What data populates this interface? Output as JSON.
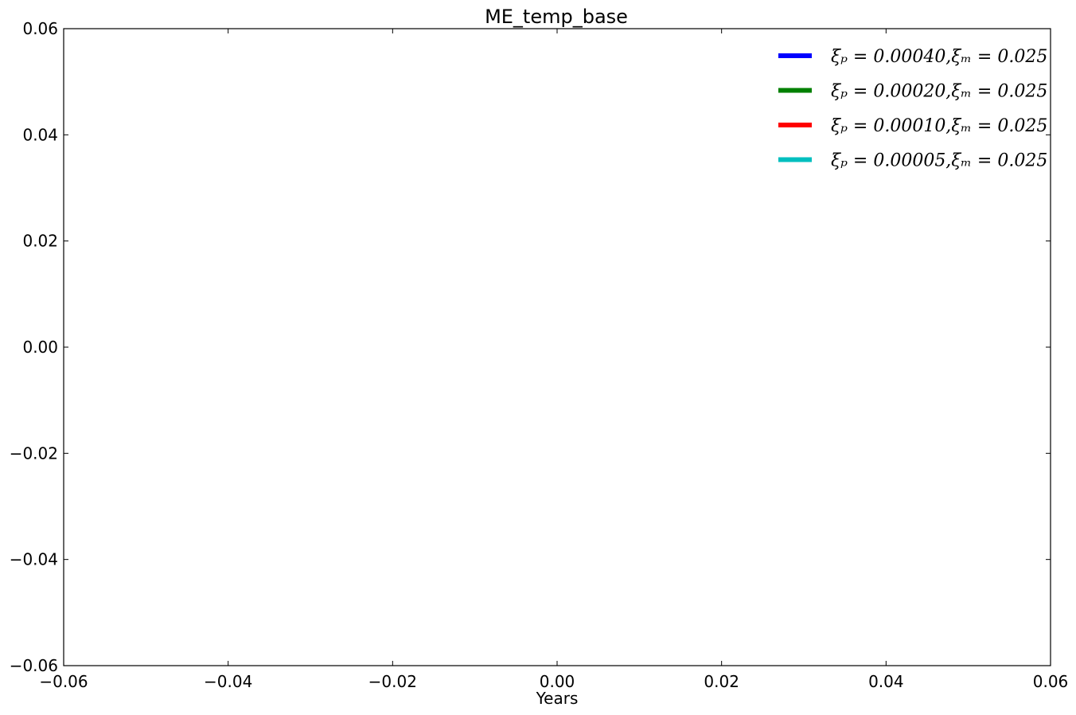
{
  "chart_data": {
    "type": "line",
    "title": "ME_temp_base",
    "xlabel": "Years",
    "ylabel": "",
    "xlim": [
      -0.06,
      0.06
    ],
    "ylim": [
      -0.06,
      0.06
    ],
    "x_ticks": [
      "−0.06",
      "−0.04",
      "−0.02",
      "0.00",
      "0.02",
      "0.04",
      "0.06"
    ],
    "x_tick_values": [
      -0.06,
      -0.04,
      -0.02,
      0.0,
      0.02,
      0.04,
      0.06
    ],
    "y_ticks": [
      "0.06",
      "0.04",
      "0.02",
      "0.00",
      "−0.02",
      "−0.04",
      "−0.06"
    ],
    "y_tick_values": [
      0.06,
      0.04,
      0.02,
      0.0,
      -0.02,
      -0.04,
      -0.06
    ],
    "grid": false,
    "legend_position": "top-right",
    "series": [
      {
        "name": "ξₚ = 0.00040,ξₘ = 0.025",
        "color": "#0000ff",
        "x": [],
        "y": []
      },
      {
        "name": "ξₚ = 0.00020,ξₘ = 0.025",
        "color": "#008000",
        "x": [],
        "y": []
      },
      {
        "name": "ξₚ = 0.00010,ξₘ = 0.025",
        "color": "#ff0000",
        "x": [],
        "y": []
      },
      {
        "name": "ξₚ = 0.00005,ξₘ = 0.025",
        "color": "#00bfbf",
        "x": [],
        "y": []
      }
    ]
  }
}
